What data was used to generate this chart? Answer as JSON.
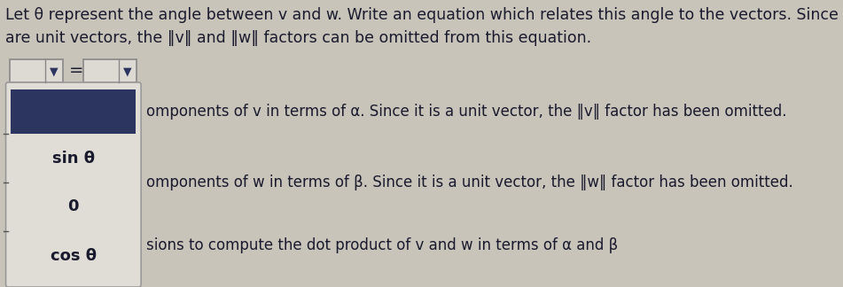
{
  "title_text": "Let θ represent the angle between v and w. Write an equation which relates this angle to the vectors. Since these\nare unit vectors, the ‖v‖ and ‖w‖ factors can be omitted from this equation.",
  "background_color": "#c8c4ba",
  "text_color": "#1a1a2e",
  "dropdown_bg": "#dddad3",
  "dropdown_border": "#888888",
  "dropdown_arrow_color": "#2c3560",
  "selected_box_bg": "#2c3560",
  "list_bg": "#e0ddd6",
  "list_border": "#999999",
  "list_items": [
    "sin θ",
    "0",
    "cos θ"
  ],
  "right_texts": [
    "omponents of v in terms of α. Since it is a unit vector, the ‖v‖ factor has been omitted.",
    "omponents of w in terms of β. Since it is a unit vector, the ‖w‖ factor has been omitted.",
    "sions to compute the dot product of v and w in terms of α and β"
  ],
  "font_size_title": 12.5,
  "font_size_list": 13,
  "font_size_right": 12
}
